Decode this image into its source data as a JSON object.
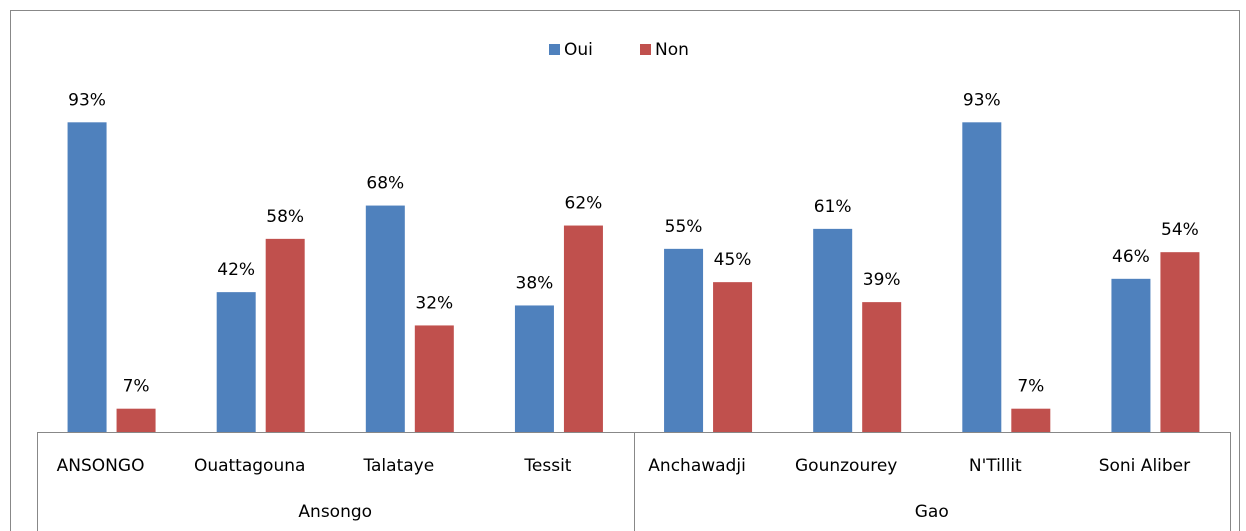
{
  "chart_data": {
    "type": "bar",
    "categories": [
      "ANSONGO",
      "Ouattagouna",
      "Talataye",
      "Tessit",
      "Anchawadji",
      "Gounzourey",
      "N'Tillit",
      "Soni Aliber"
    ],
    "groups": [
      {
        "name": "Ansongo",
        "count": 4
      },
      {
        "name": "Gao",
        "count": 4
      }
    ],
    "series": [
      {
        "name": "Oui",
        "color": "#4f81bd",
        "values": [
          93,
          42,
          68,
          38,
          55,
          61,
          93,
          46
        ],
        "value_labels": [
          "93%",
          "42%",
          "68%",
          "38%",
          "55%",
          "61%",
          "93%",
          "46%"
        ]
      },
      {
        "name": "Non",
        "color": "#c0504d",
        "values": [
          7,
          58,
          32,
          62,
          45,
          39,
          7,
          54
        ],
        "value_labels": [
          "7%",
          "58%",
          "32%",
          "62%",
          "45%",
          "39%",
          "7%",
          "54%"
        ]
      }
    ],
    "ylim": [
      0,
      100
    ],
    "legend": "top"
  }
}
